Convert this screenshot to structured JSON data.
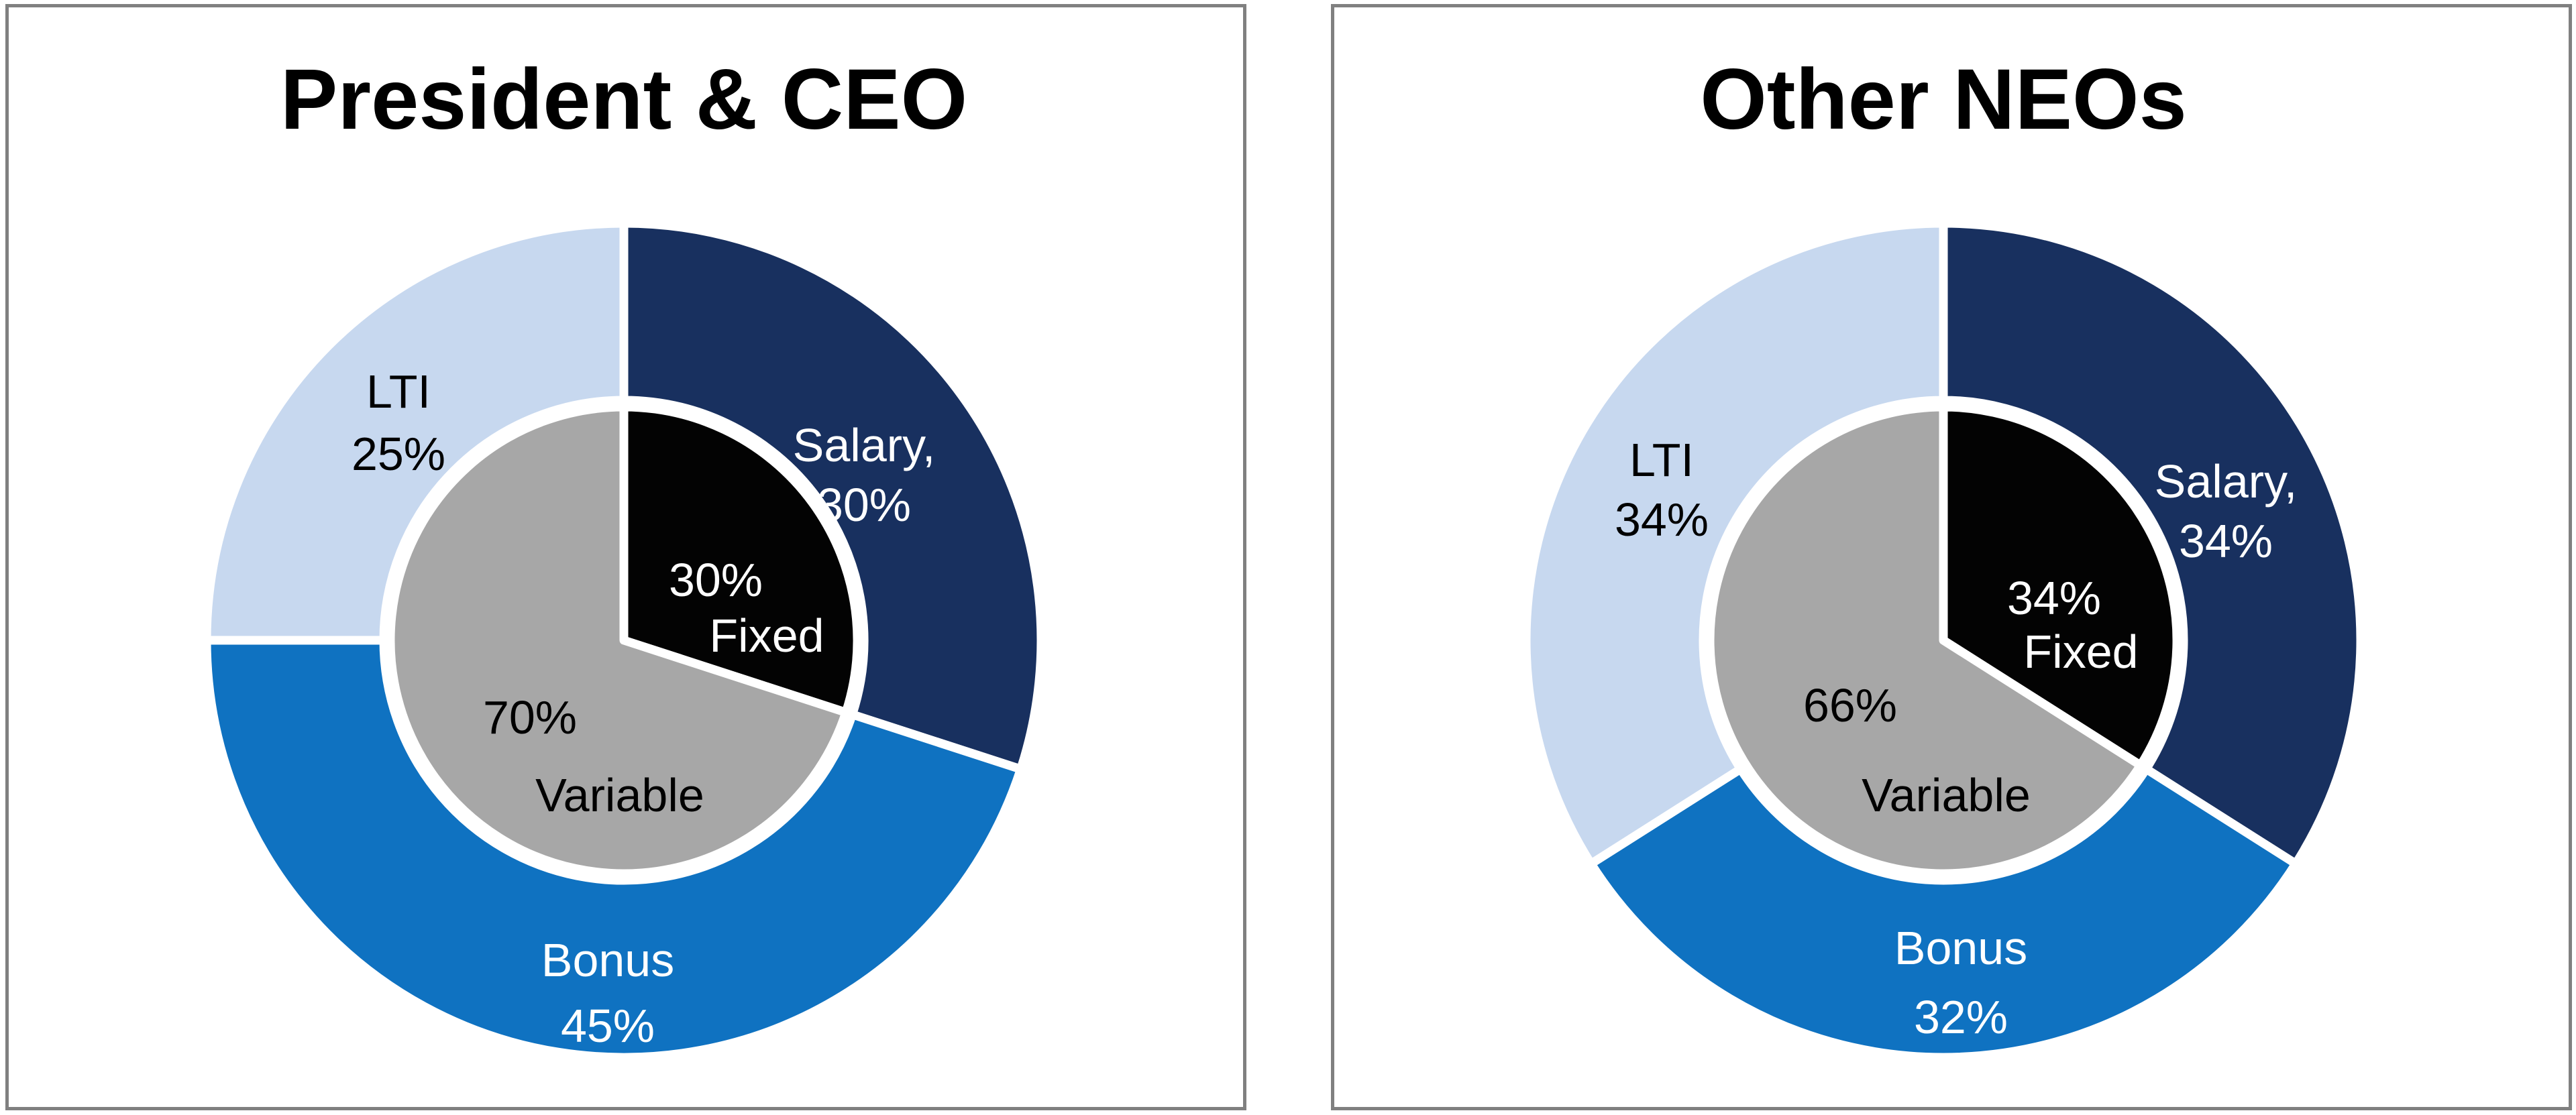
{
  "page": {
    "background_color": "#FFFFFF",
    "panel_border_color": "#808080",
    "divider_color": "#FFFFFF"
  },
  "chart_data": [
    {
      "type": "pie",
      "variant": "donut-ring-with-inner-pie",
      "title": "President & CEO",
      "direction": "clockwise",
      "start_angle_deg": 0,
      "legend_position": "none",
      "outer_ring": {
        "name": "pay-elements",
        "categories": [
          "Salary",
          "Bonus",
          "LTI"
        ],
        "values": [
          30,
          45,
          25
        ],
        "slices": [
          {
            "label": "Salary",
            "value_pct": 30,
            "display_lines": [
              "Salary,",
              "30%"
            ],
            "color": "#18305F",
            "label_color": "#FFFFFF"
          },
          {
            "label": "Bonus",
            "value_pct": 45,
            "display_lines": [
              "Bonus",
              "45%"
            ],
            "color": "#0F72C1",
            "label_color": "#FFFFFF"
          },
          {
            "label": "LTI",
            "value_pct": 25,
            "display_lines": [
              "LTI",
              "25%"
            ],
            "color": "#C7D8EF",
            "label_color": "#000000"
          }
        ]
      },
      "inner_pie": {
        "name": "fixed-vs-variable",
        "categories": [
          "Fixed",
          "Variable"
        ],
        "values": [
          30,
          70
        ],
        "slices": [
          {
            "label": "Fixed",
            "value_pct": 30,
            "display_lines": [
              "30%",
              "Fixed"
            ],
            "color": "#030303",
            "label_color": "#FFFFFF"
          },
          {
            "label": "Variable",
            "value_pct": 70,
            "display_lines": [
              "70%",
              "Variable"
            ],
            "color": "#A7A7A7",
            "label_color": "#000000"
          }
        ]
      }
    },
    {
      "type": "pie",
      "variant": "donut-ring-with-inner-pie",
      "title": "Other NEOs",
      "direction": "clockwise",
      "start_angle_deg": 0,
      "legend_position": "none",
      "outer_ring": {
        "name": "pay-elements",
        "categories": [
          "Salary",
          "Bonus",
          "LTI"
        ],
        "values": [
          34,
          32,
          34
        ],
        "slices": [
          {
            "label": "Salary",
            "value_pct": 34,
            "display_lines": [
              "Salary,",
              "34%"
            ],
            "color": "#18305F",
            "label_color": "#FFFFFF"
          },
          {
            "label": "Bonus",
            "value_pct": 32,
            "display_lines": [
              "Bonus",
              "32%"
            ],
            "color": "#0F72C1",
            "label_color": "#FFFFFF"
          },
          {
            "label": "LTI",
            "value_pct": 34,
            "display_lines": [
              "LTI",
              "34%"
            ],
            "color": "#C7D8EF",
            "label_color": "#000000"
          }
        ]
      },
      "inner_pie": {
        "name": "fixed-vs-variable",
        "categories": [
          "Fixed",
          "Variable"
        ],
        "values": [
          34,
          66
        ],
        "slices": [
          {
            "label": "Fixed",
            "value_pct": 34,
            "display_lines": [
              "34%",
              "Fixed"
            ],
            "color": "#030303",
            "label_color": "#FFFFFF"
          },
          {
            "label": "Variable",
            "value_pct": 66,
            "display_lines": [
              "66%",
              "Variable"
            ],
            "color": "#A7A7A7",
            "label_color": "#000000"
          }
        ]
      }
    }
  ]
}
